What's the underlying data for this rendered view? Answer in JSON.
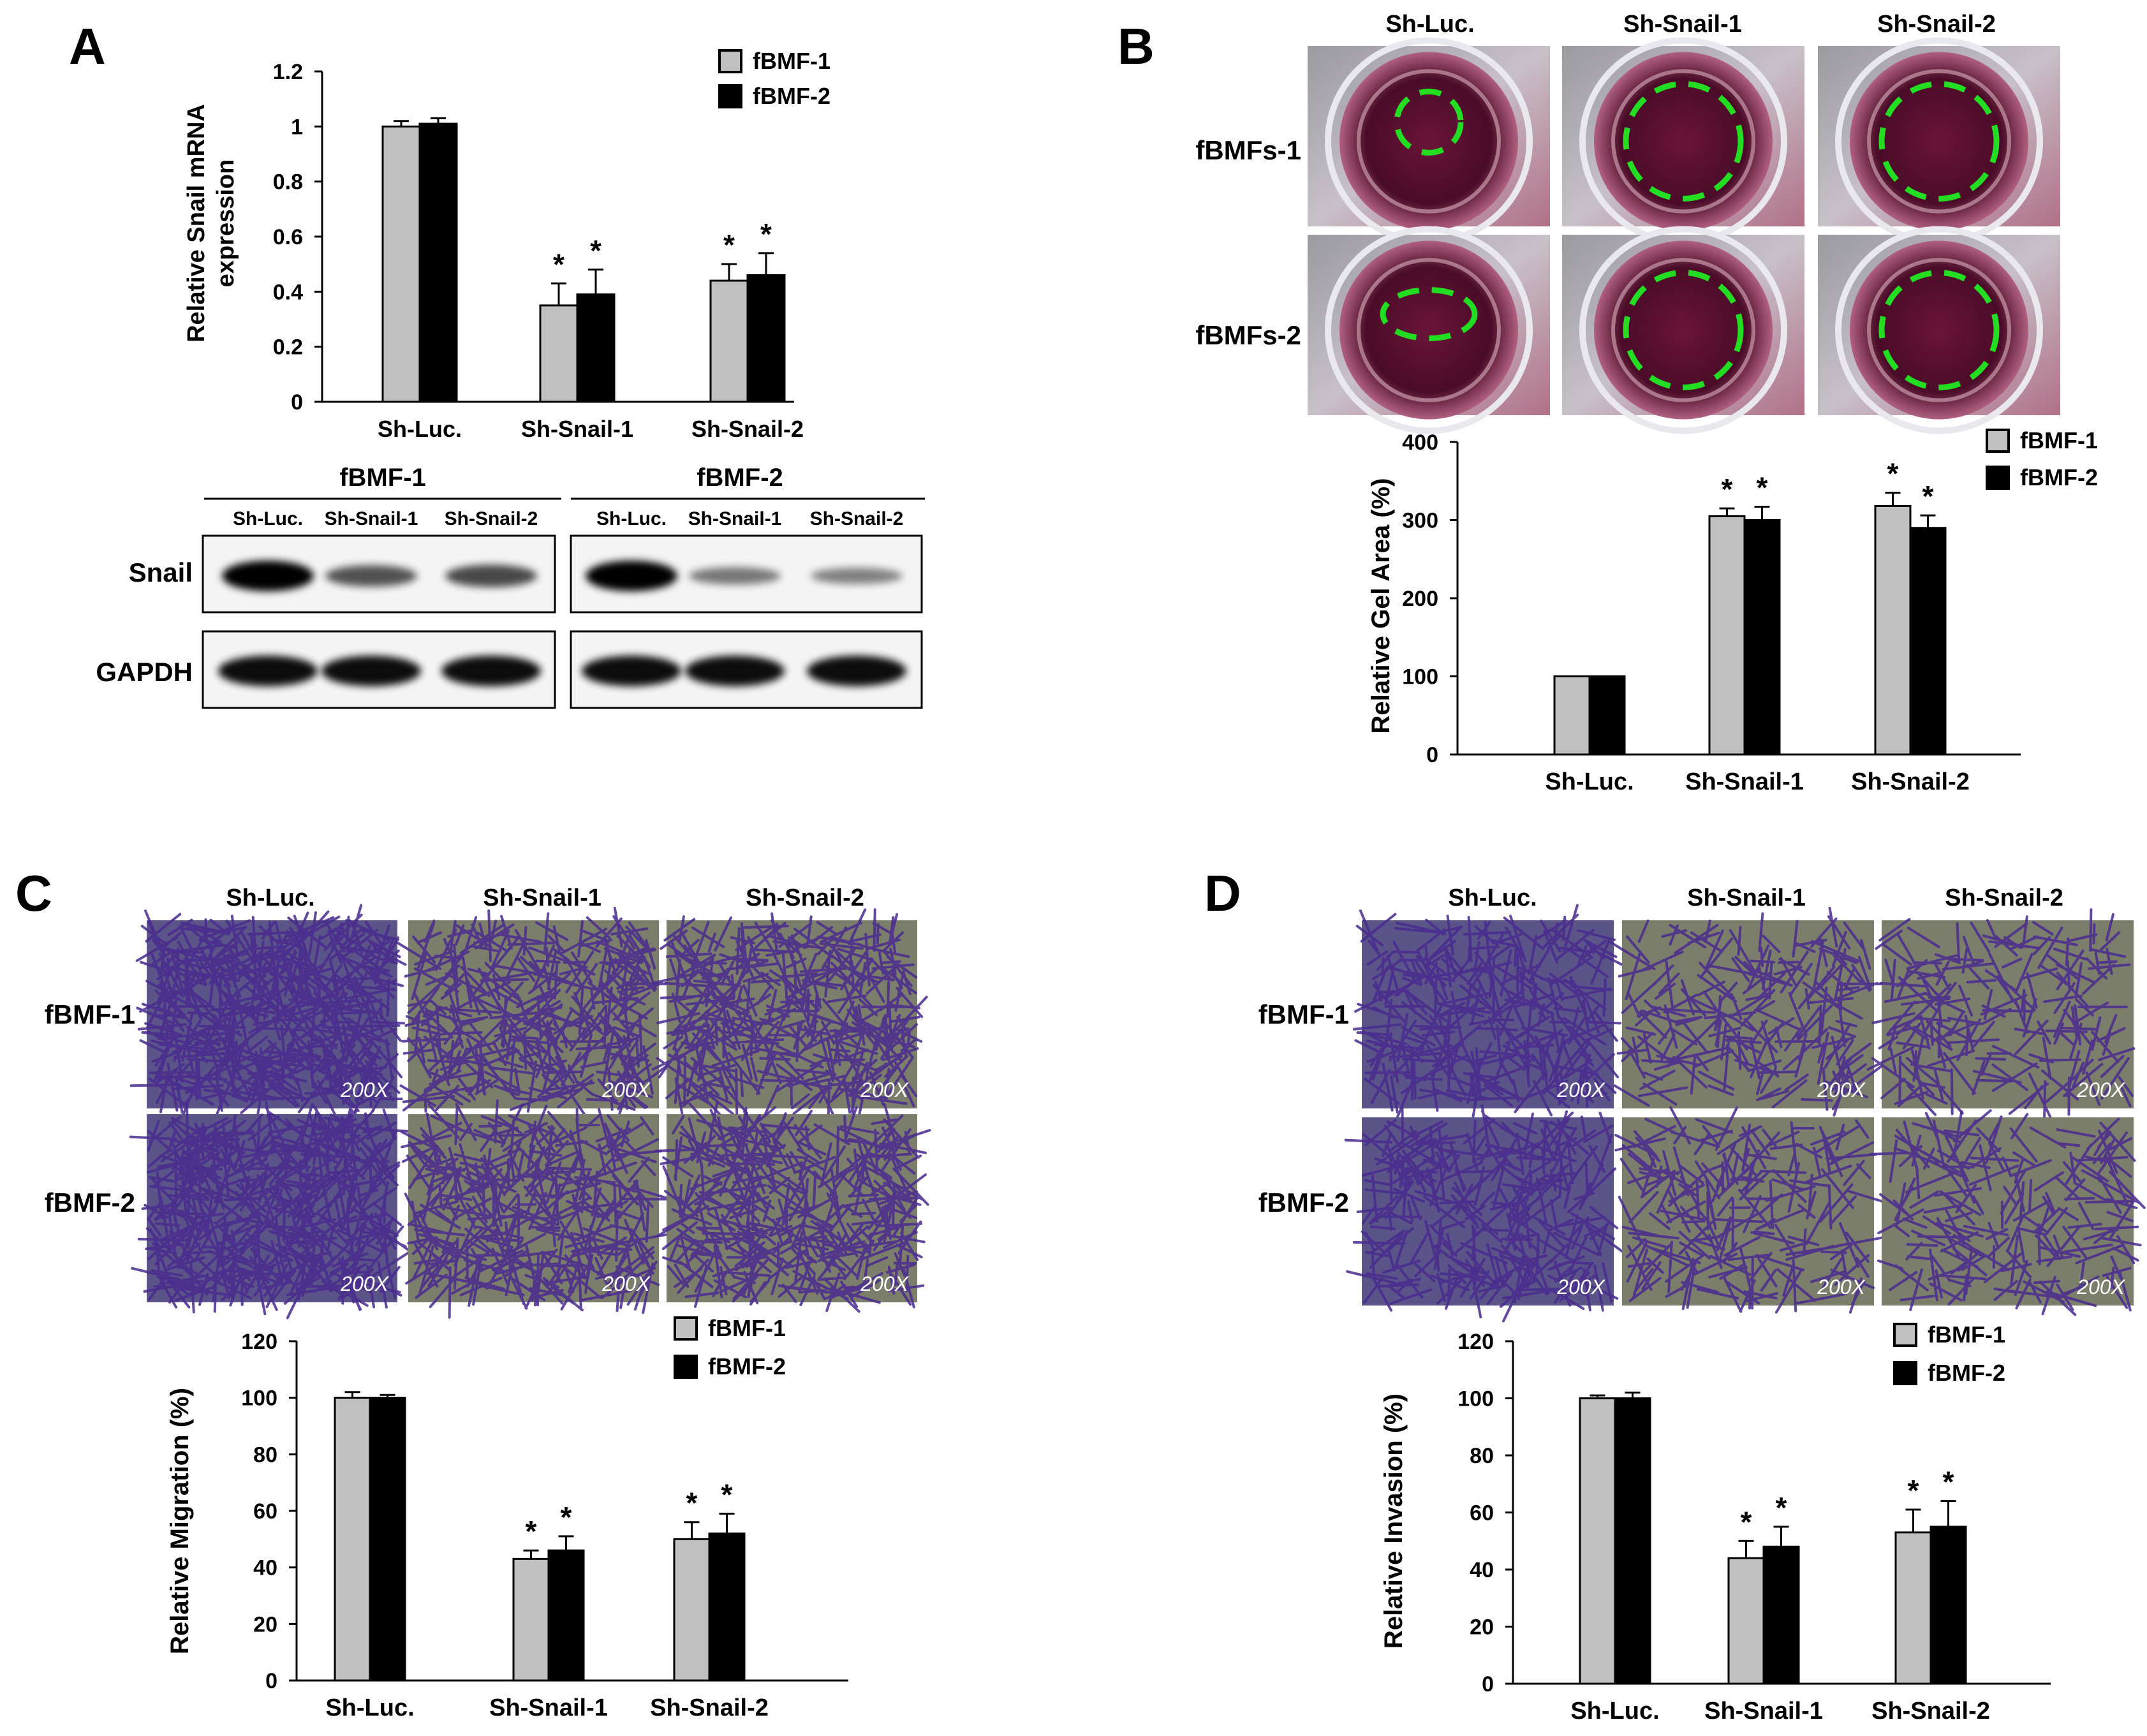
{
  "panels": {
    "A": {
      "letter": "A",
      "chart": {
        "ylabel_lines": [
          "Relative Snail mRNA",
          "expression"
        ],
        "yticks": [
          "0",
          "0.2",
          "0.4",
          "0.6",
          "0.8",
          "1",
          "1.2"
        ],
        "categories": [
          "Sh-Luc.",
          "Sh-Snail-1",
          "Sh-Snail-2"
        ],
        "legend": [
          "fBMF-1",
          "fBMF-2"
        ]
      },
      "blot": {
        "group_labels": [
          "fBMF-1",
          "fBMF-2"
        ],
        "lane_labels": [
          "Sh-Luc.",
          "Sh-Snail-1",
          "Sh-Snail-2",
          "Sh-Luc.",
          "Sh-Snail-1",
          "Sh-Snail-2"
        ],
        "row_labels": [
          "Snail",
          "GAPDH"
        ],
        "snail_band_intensity": [
          1.0,
          0.55,
          0.6,
          1.0,
          0.35,
          0.3
        ],
        "gapdh_band_intensity": [
          1.0,
          1.0,
          1.0,
          1.0,
          1.0,
          1.0
        ]
      }
    },
    "B": {
      "letter": "B",
      "col_labels": [
        "Sh-Luc.",
        "Sh-Snail-1",
        "Sh-Snail-2"
      ],
      "row_labels": [
        "fBMFs-1",
        "fBMFs-2"
      ],
      "chart": {
        "ylabel": "Relative Gel Area (%)",
        "yticks": [
          "0",
          "100",
          "200",
          "300",
          "400"
        ],
        "categories": [
          "Sh-Luc.",
          "Sh-Snail-1",
          "Sh-Snail-2"
        ],
        "legend": [
          "fBMF-1",
          "fBMF-2"
        ]
      }
    },
    "C": {
      "letter": "C",
      "col_labels": [
        "Sh-Luc.",
        "Sh-Snail-1",
        "Sh-Snail-2"
      ],
      "row_labels": [
        "fBMF-1",
        "fBMF-2"
      ],
      "magnification": "200X",
      "chart": {
        "ylabel": "Relative Migration (%)",
        "yticks": [
          "0",
          "20",
          "40",
          "60",
          "80",
          "100",
          "120"
        ],
        "categories": [
          "Sh-Luc.",
          "Sh-Snail-1",
          "Sh-Snail-2"
        ],
        "legend": [
          "fBMF-1",
          "fBMF-2"
        ]
      }
    },
    "D": {
      "letter": "D",
      "col_labels": [
        "Sh-Luc.",
        "Sh-Snail-1",
        "Sh-Snail-2"
      ],
      "row_labels": [
        "fBMF-1",
        "fBMF-2"
      ],
      "magnification": "200X",
      "chart": {
        "ylabel": "Relative Invasion (%)",
        "yticks": [
          "0",
          "20",
          "40",
          "60",
          "80",
          "100",
          "120"
        ],
        "categories": [
          "Sh-Luc.",
          "Sh-Snail-1",
          "Sh-Snail-2"
        ],
        "legend": [
          "fBMF-1",
          "fBMF-2"
        ]
      }
    }
  },
  "significance_marker": "*",
  "colors": {
    "series1": "#c0c0c0",
    "series2": "#000000",
    "dish_fill": "#5a1030",
    "dish_ring": "#22dd22",
    "stain": "#4a2a90",
    "stain_bg": "#8a8c6a"
  },
  "chart_data": [
    {
      "type": "bar",
      "panel": "A",
      "categories": [
        "Sh-Luc.",
        "Sh-Snail-1",
        "Sh-Snail-2"
      ],
      "series": [
        {
          "name": "fBMF-1",
          "values": [
            1.0,
            0.35,
            0.44
          ],
          "errors": [
            0.02,
            0.08,
            0.06
          ]
        },
        {
          "name": "fBMF-2",
          "values": [
            1.01,
            0.39,
            0.46
          ],
          "errors": [
            0.02,
            0.09,
            0.08
          ]
        }
      ],
      "significant": [
        [
          false,
          true,
          true
        ],
        [
          false,
          true,
          true
        ]
      ],
      "ylabel": "Relative Snail mRNA expression",
      "ylim": [
        0,
        1.2
      ]
    },
    {
      "type": "bar",
      "panel": "B",
      "categories": [
        "Sh-Luc.",
        "Sh-Snail-1",
        "Sh-Snail-2"
      ],
      "series": [
        {
          "name": "fBMF-1",
          "values": [
            100,
            305,
            318
          ],
          "errors": [
            0,
            10,
            17
          ]
        },
        {
          "name": "fBMF-2",
          "values": [
            100,
            300,
            290
          ],
          "errors": [
            0,
            17,
            16
          ]
        }
      ],
      "significant": [
        [
          false,
          true,
          true
        ],
        [
          false,
          true,
          true
        ]
      ],
      "ylabel": "Relative Gel Area (%)",
      "ylim": [
        0,
        400
      ]
    },
    {
      "type": "bar",
      "panel": "C",
      "categories": [
        "Sh-Luc.",
        "Sh-Snail-1",
        "Sh-Snail-2"
      ],
      "series": [
        {
          "name": "fBMF-1",
          "values": [
            100,
            43,
            50
          ],
          "errors": [
            2,
            3,
            6
          ]
        },
        {
          "name": "fBMF-2",
          "values": [
            100,
            46,
            52
          ],
          "errors": [
            1,
            5,
            7
          ]
        }
      ],
      "significant": [
        [
          false,
          true,
          true
        ],
        [
          false,
          true,
          true
        ]
      ],
      "ylabel": "Relative Migration (%)",
      "ylim": [
        0,
        120
      ]
    },
    {
      "type": "bar",
      "panel": "D",
      "categories": [
        "Sh-Luc.",
        "Sh-Snail-1",
        "Sh-Snail-2"
      ],
      "series": [
        {
          "name": "fBMF-1",
          "values": [
            100,
            44,
            53
          ],
          "errors": [
            1,
            6,
            8
          ]
        },
        {
          "name": "fBMF-2",
          "values": [
            100,
            48,
            55
          ],
          "errors": [
            2,
            7,
            9
          ]
        }
      ],
      "significant": [
        [
          false,
          true,
          true
        ],
        [
          false,
          true,
          true
        ]
      ],
      "ylabel": "Relative Invasion (%)",
      "ylim": [
        0,
        120
      ]
    }
  ]
}
